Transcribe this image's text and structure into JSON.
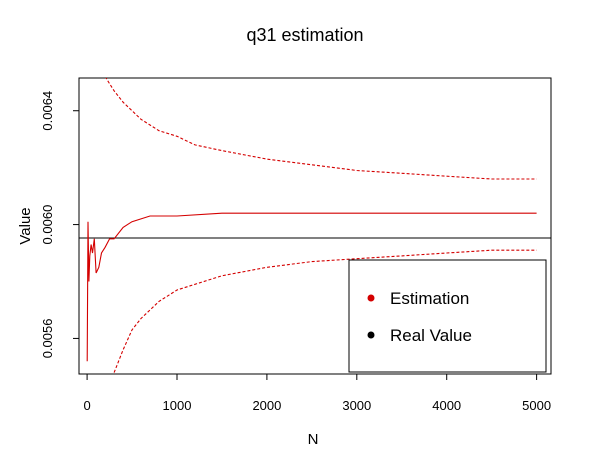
{
  "chart_data": {
    "type": "line",
    "title": "q31 estimation",
    "xlabel": "N",
    "ylabel": "Value",
    "xlim": [
      -90,
      5160
    ],
    "ylim": [
      0.005475,
      0.006515
    ],
    "x_ticks": [
      0,
      1000,
      2000,
      3000,
      4000,
      5000
    ],
    "x_tick_labels": [
      "0",
      "1000",
      "2000",
      "3000",
      "4000",
      "5000"
    ],
    "y_ticks": [
      0.0056,
      0.006,
      0.0064
    ],
    "y_tick_labels": [
      "0.0056",
      "0.0060",
      "0.0064"
    ],
    "reference_line": {
      "name": "Real Value",
      "y": 0.005953
    },
    "series": [
      {
        "name": "Estimation",
        "color": "#d40000",
        "style": "solid",
        "x": [
          1,
          10,
          20,
          30,
          45,
          60,
          80,
          100,
          130,
          160,
          200,
          250,
          300,
          400,
          500,
          700,
          1000,
          1500,
          2000,
          2500,
          3000,
          3500,
          4000,
          4500,
          5000
        ],
        "y": [
          0.00552,
          0.00601,
          0.0058,
          0.00589,
          0.00593,
          0.0059,
          0.00595,
          0.00583,
          0.00585,
          0.0059,
          0.00592,
          0.00595,
          0.00595,
          0.00599,
          0.00601,
          0.00603,
          0.00603,
          0.00604,
          0.00604,
          0.00604,
          0.00604,
          0.00604,
          0.00604,
          0.00604,
          0.00604
        ]
      },
      {
        "name": "",
        "color": "#d40000",
        "style": "dashed",
        "x": [
          200,
          300,
          400,
          500,
          600,
          700,
          800,
          1000,
          1200,
          1500,
          2000,
          2500,
          3000,
          3500,
          4000,
          4500,
          5000
        ],
        "y": [
          0.00652,
          0.00647,
          0.00643,
          0.0064,
          0.00637,
          0.00635,
          0.00633,
          0.00631,
          0.00628,
          0.00626,
          0.00623,
          0.00621,
          0.00619,
          0.00618,
          0.00617,
          0.00616,
          0.00616
        ]
      },
      {
        "name": "",
        "color": "#d40000",
        "style": "dashed",
        "x": [
          300,
          400,
          500,
          600,
          700,
          800,
          1000,
          1200,
          1500,
          2000,
          2500,
          3000,
          3500,
          4000,
          4500,
          5000
        ],
        "y": [
          0.00548,
          0.00556,
          0.00563,
          0.00567,
          0.0057,
          0.00573,
          0.00577,
          0.00579,
          0.00582,
          0.00585,
          0.00587,
          0.00588,
          0.00589,
          0.0059,
          0.00591,
          0.00591
        ]
      }
    ],
    "legend": {
      "placement": "bottom-right",
      "entries": [
        {
          "label": "Estimation",
          "color": "#d40000"
        },
        {
          "label": "Real Value",
          "color": "#000000"
        }
      ]
    },
    "grid": false
  }
}
